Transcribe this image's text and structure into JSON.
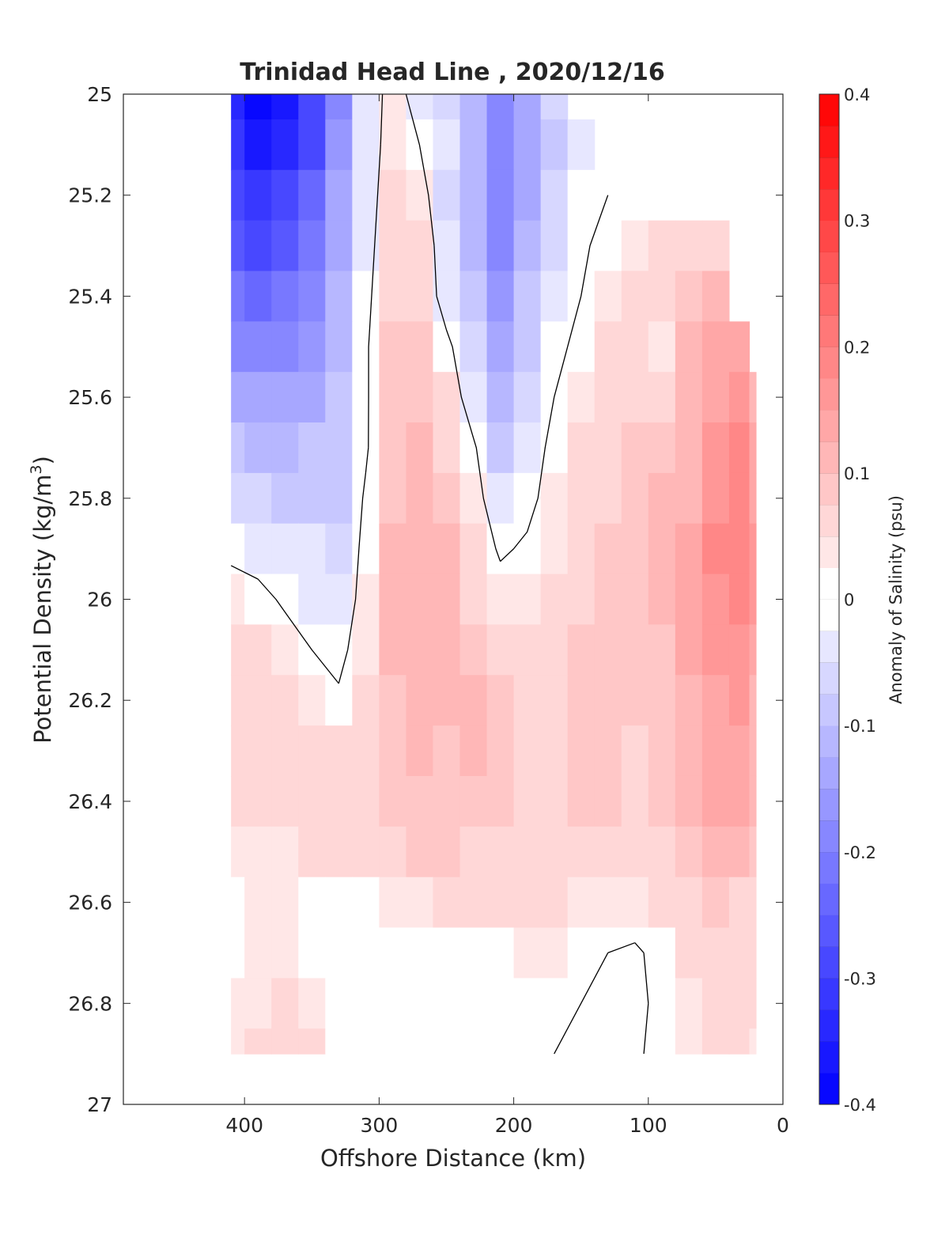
{
  "chart_data": {
    "type": "heatmap",
    "title": "Trinidad Head Line , 2020/12/16",
    "xlabel": "Offshore Distance (km)",
    "ylabel_main": "Potential Density (kg/m",
    "ylabel_sup": "3",
    "ylabel_close": ")",
    "colorbar_label": "Anomaly of Salinity (psu)",
    "x_reversed": true,
    "y_reversed": true,
    "xlim": [
      0,
      490
    ],
    "ylim": [
      25,
      27
    ],
    "xticks": [
      400,
      300,
      200,
      100,
      0
    ],
    "xtick_labels": [
      "400",
      "300",
      "200",
      "100",
      "0"
    ],
    "yticks": [
      25,
      25.2,
      25.4,
      25.6,
      25.8,
      26,
      26.2,
      26.4,
      26.6,
      26.8,
      27
    ],
    "ytick_labels": [
      "25",
      "25.2",
      "25.4",
      "25.6",
      "25.8",
      "26",
      "26.2",
      "26.4",
      "26.6",
      "26.8",
      "27"
    ],
    "clim": [
      -0.4,
      0.4
    ],
    "colorbar_ticks": [
      -0.4,
      -0.3,
      -0.2,
      -0.1,
      0,
      0.1,
      0.2,
      0.3,
      0.4
    ],
    "colorbar_tick_labels": [
      "-0.4",
      "-0.3",
      "-0.2",
      "-0.1",
      "0",
      "0.1",
      "0.2",
      "0.3",
      "0.4"
    ],
    "contour_step": 0.025,
    "colormap": "blue-white-red",
    "color_min": "#0000ff",
    "color_zero": "#ffffff",
    "color_max": "#ff0000",
    "zero_contour_color": "#000000",
    "grid": false,
    "data_extent": {
      "x_min": 20,
      "x_max": 410,
      "y_min": 25,
      "y_max": 26.9
    },
    "x": [
      410,
      390,
      370,
      350,
      330,
      310,
      290,
      270,
      250,
      230,
      210,
      190,
      170,
      150,
      130,
      110,
      90,
      70,
      50,
      30,
      20
    ],
    "y": [
      25.0,
      25.1,
      25.2,
      25.3,
      25.4,
      25.5,
      25.6,
      25.7,
      25.8,
      25.9,
      26.0,
      26.1,
      26.2,
      26.3,
      26.4,
      26.5,
      26.6,
      26.7,
      26.8,
      26.9
    ],
    "z": [
      [
        -0.33,
        -0.38,
        -0.36,
        -0.3,
        -0.18,
        -0.05,
        0.03,
        -0.03,
        -0.06,
        -0.12,
        -0.18,
        -0.14,
        -0.07,
        null,
        null,
        null,
        null,
        null,
        null,
        null,
        null
      ],
      [
        -0.32,
        -0.36,
        -0.34,
        -0.28,
        -0.17,
        -0.05,
        0.04,
        0.0,
        -0.05,
        -0.12,
        -0.19,
        -0.14,
        -0.08,
        -0.03,
        null,
        null,
        null,
        null,
        null,
        null,
        null
      ],
      [
        -0.3,
        -0.32,
        -0.3,
        -0.25,
        -0.15,
        -0.04,
        0.05,
        0.03,
        -0.06,
        -0.12,
        -0.2,
        -0.13,
        -0.07,
        -0.02,
        0.0,
        0.02,
        null,
        null,
        null,
        null,
        null
      ],
      [
        -0.26,
        -0.28,
        -0.26,
        -0.22,
        -0.13,
        -0.03,
        0.06,
        0.06,
        -0.05,
        -0.11,
        -0.19,
        -0.12,
        -0.06,
        -0.01,
        0.02,
        0.04,
        0.06,
        0.07,
        0.07,
        null,
        null
      ],
      [
        -0.22,
        -0.24,
        -0.22,
        -0.19,
        -0.12,
        -0.02,
        0.07,
        0.07,
        -0.04,
        -0.1,
        -0.17,
        -0.1,
        -0.04,
        0.0,
        0.03,
        0.05,
        0.06,
        0.09,
        0.1,
        null,
        null
      ],
      [
        -0.18,
        -0.19,
        -0.18,
        -0.16,
        -0.11,
        -0.01,
        0.08,
        0.08,
        0.02,
        -0.07,
        -0.14,
        -0.08,
        -0.02,
        0.02,
        0.05,
        0.06,
        0.04,
        0.1,
        0.13,
        0.15,
        null
      ],
      [
        -0.14,
        -0.15,
        -0.14,
        -0.13,
        -0.1,
        -0.01,
        0.08,
        0.09,
        0.05,
        -0.04,
        -0.11,
        -0.06,
        0.0,
        0.04,
        0.06,
        0.07,
        0.05,
        0.1,
        0.15,
        0.17,
        0.12
      ],
      [
        -0.1,
        -0.11,
        -0.11,
        -0.1,
        -0.09,
        -0.01,
        0.09,
        0.1,
        0.07,
        0.01,
        -0.08,
        -0.04,
        0.02,
        0.05,
        0.06,
        0.08,
        0.08,
        0.11,
        0.16,
        0.18,
        0.14
      ],
      [
        -0.06,
        -0.07,
        -0.08,
        -0.08,
        -0.08,
        0.01,
        0.09,
        0.11,
        0.09,
        0.03,
        -0.05,
        -0.02,
        0.03,
        0.05,
        0.07,
        0.08,
        0.1,
        0.12,
        0.17,
        0.18,
        0.15
      ],
      [
        -0.02,
        -0.03,
        -0.04,
        -0.05,
        -0.06,
        0.02,
        0.1,
        0.12,
        0.11,
        0.05,
        -0.01,
        0.01,
        0.04,
        0.06,
        0.08,
        0.09,
        0.1,
        0.13,
        0.18,
        0.19,
        0.16
      ],
      [
        0.04,
        0.02,
        -0.01,
        -0.03,
        -0.05,
        0.03,
        0.1,
        0.12,
        0.12,
        0.07,
        0.03,
        0.03,
        0.05,
        0.07,
        0.09,
        0.09,
        0.1,
        0.13,
        0.17,
        0.18,
        0.16
      ],
      [
        0.06,
        0.05,
        0.03,
        0.0,
        -0.02,
        0.04,
        0.1,
        0.11,
        0.11,
        0.09,
        0.06,
        0.05,
        0.06,
        0.08,
        0.09,
        0.08,
        0.09,
        0.13,
        0.16,
        0.17,
        0.15
      ],
      [
        0.06,
        0.06,
        0.06,
        0.04,
        0.01,
        0.05,
        0.09,
        0.1,
        0.1,
        0.1,
        0.08,
        0.06,
        0.06,
        0.08,
        0.09,
        0.08,
        0.08,
        0.12,
        0.15,
        0.16,
        0.12
      ],
      [
        0.06,
        0.06,
        0.06,
        0.06,
        0.05,
        0.06,
        0.08,
        0.1,
        0.09,
        0.1,
        0.09,
        0.07,
        0.07,
        0.08,
        0.09,
        0.07,
        0.09,
        0.11,
        0.14,
        0.15,
        0.11
      ],
      [
        0.05,
        0.05,
        0.05,
        0.06,
        0.06,
        0.07,
        0.08,
        0.09,
        0.09,
        0.09,
        0.08,
        0.07,
        0.07,
        0.08,
        0.08,
        0.07,
        0.08,
        0.1,
        0.13,
        0.13,
        0.1
      ],
      [
        0.03,
        0.03,
        0.04,
        0.05,
        0.05,
        0.06,
        0.07,
        0.08,
        0.08,
        0.07,
        0.06,
        0.06,
        0.07,
        0.07,
        0.07,
        0.06,
        0.07,
        0.09,
        0.1,
        0.1,
        0.08
      ],
      [
        0.02,
        0.03,
        0.03,
        0.02,
        0.01,
        0.02,
        0.03,
        0.04,
        0.05,
        0.05,
        0.05,
        0.05,
        0.05,
        0.04,
        0.04,
        0.04,
        0.05,
        0.07,
        0.08,
        0.07,
        0.06
      ],
      [
        0.02,
        0.04,
        0.04,
        0.02,
        0.01,
        0.01,
        0.01,
        0.01,
        0.01,
        0.02,
        0.02,
        0.03,
        0.03,
        0.01,
        0.0,
        -0.01,
        0.02,
        0.05,
        0.07,
        0.06,
        0.05
      ],
      [
        0.03,
        0.04,
        0.05,
        0.04,
        0.02,
        0.01,
        0.02,
        0.02,
        0.01,
        0.01,
        0.01,
        0.02,
        0.01,
        0.0,
        -0.01,
        -0.01,
        0.01,
        0.04,
        0.06,
        0.05,
        0.05
      ],
      [
        0.04,
        0.05,
        0.06,
        0.05,
        0.02,
        0.01,
        0.01,
        0.01,
        0.01,
        0.01,
        0.01,
        0.01,
        0.0,
        -0.01,
        -0.01,
        -0.01,
        0.02,
        0.04,
        0.05,
        0.05,
        0.04
      ]
    ]
  }
}
